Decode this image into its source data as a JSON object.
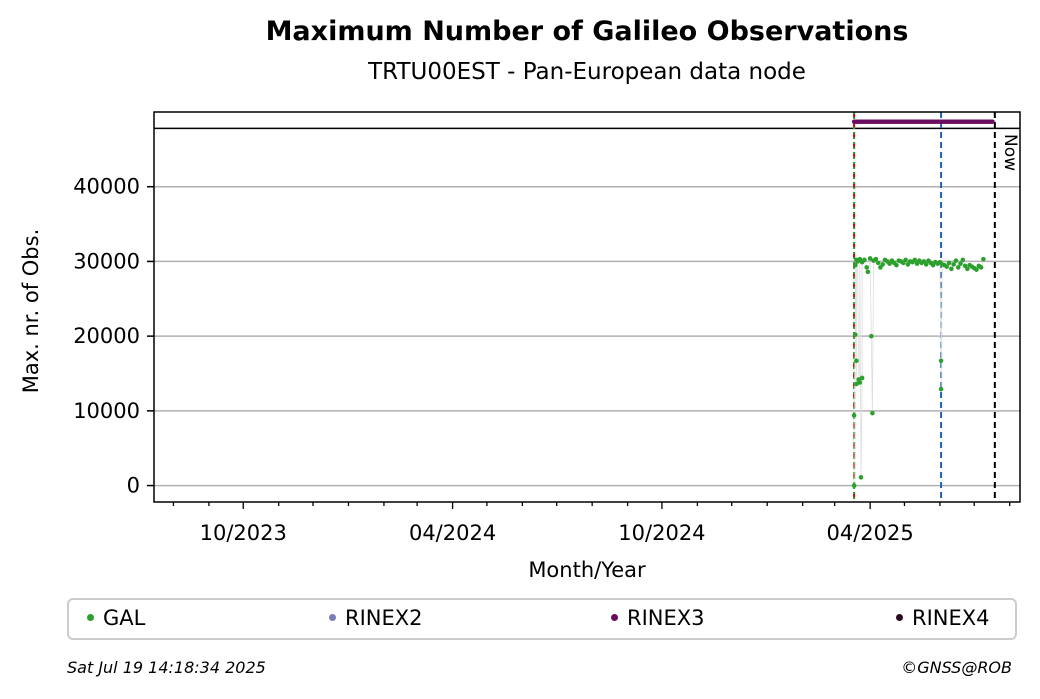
{
  "chart_data": {
    "type": "scatter",
    "title": "Maximum Number of Galileo Observations",
    "subtitle": "TRTU00EST - Pan-European data node",
    "xlabel": "Month/Year",
    "ylabel": "Max. nr. of Obs.",
    "x_tick_labels": [
      "10/2023",
      "04/2024",
      "10/2024",
      "04/2025"
    ],
    "y_ticks": [
      0,
      10000,
      20000,
      30000,
      40000
    ],
    "ylim": [
      -2200,
      50000
    ],
    "xlim": [
      "2023-07-15",
      "2025-08-10"
    ],
    "grid": "horizontal",
    "now_label": "Now",
    "vlines": [
      {
        "date": "2025-03-18",
        "color": "#cc0000",
        "style": "dashed"
      },
      {
        "date": "2025-03-18",
        "color": "#2ca02c",
        "style": "dotted"
      },
      {
        "date": "2025-06-02",
        "color": "#1f63b4",
        "style": "dashed"
      },
      {
        "date": "2025-07-19",
        "color": "#000000",
        "style": "dashed"
      }
    ],
    "hline": {
      "y": 47800,
      "color": "#000000"
    },
    "series": [
      {
        "name": "GAL",
        "color": "#2ca02c",
        "points": [
          [
            "2025-03-18",
            0
          ],
          [
            "2025-03-18",
            9400
          ],
          [
            "2025-03-19",
            20200
          ],
          [
            "2025-03-20",
            16700
          ],
          [
            "2025-03-20",
            13600
          ],
          [
            "2025-03-22",
            14200
          ],
          [
            "2025-03-23",
            13800
          ],
          [
            "2025-03-24",
            1100
          ],
          [
            "2025-03-25",
            14400
          ],
          [
            "2025-03-19",
            29500
          ],
          [
            "2025-03-20",
            30200
          ],
          [
            "2025-03-21",
            30000
          ],
          [
            "2025-03-23",
            30300
          ],
          [
            "2025-03-25",
            29900
          ],
          [
            "2025-03-27",
            30200
          ],
          [
            "2025-03-29",
            29200
          ],
          [
            "2025-03-30",
            28600
          ],
          [
            "2025-04-01",
            30400
          ],
          [
            "2025-04-02",
            20000
          ],
          [
            "2025-04-03",
            9700
          ],
          [
            "2025-04-04",
            30100
          ],
          [
            "2025-04-06",
            30300
          ],
          [
            "2025-04-08",
            29800
          ],
          [
            "2025-04-10",
            29200
          ],
          [
            "2025-04-12",
            29600
          ],
          [
            "2025-04-14",
            30200
          ],
          [
            "2025-04-16",
            30000
          ],
          [
            "2025-04-18",
            29700
          ],
          [
            "2025-04-20",
            30100
          ],
          [
            "2025-04-22",
            29800
          ],
          [
            "2025-04-24",
            29500
          ],
          [
            "2025-04-26",
            30100
          ],
          [
            "2025-04-28",
            30000
          ],
          [
            "2025-04-30",
            29800
          ],
          [
            "2025-05-02",
            30200
          ],
          [
            "2025-05-04",
            29600
          ],
          [
            "2025-05-06",
            30000
          ],
          [
            "2025-05-08",
            29900
          ],
          [
            "2025-05-10",
            30200
          ],
          [
            "2025-05-12",
            29700
          ],
          [
            "2025-05-14",
            30100
          ],
          [
            "2025-05-16",
            29800
          ],
          [
            "2025-05-18",
            30000
          ],
          [
            "2025-05-20",
            29600
          ],
          [
            "2025-05-22",
            30100
          ],
          [
            "2025-05-24",
            29800
          ],
          [
            "2025-05-26",
            29500
          ],
          [
            "2025-05-28",
            29900
          ],
          [
            "2025-05-30",
            29700
          ],
          [
            "2025-06-01",
            29900
          ],
          [
            "2025-06-02",
            16700
          ],
          [
            "2025-06-02",
            12900
          ],
          [
            "2025-06-03",
            29600
          ],
          [
            "2025-06-05",
            29500
          ],
          [
            "2025-06-07",
            29300
          ],
          [
            "2025-06-09",
            29800
          ],
          [
            "2025-06-11",
            29000
          ],
          [
            "2025-06-13",
            29600
          ],
          [
            "2025-06-15",
            30100
          ],
          [
            "2025-06-17",
            29200
          ],
          [
            "2025-06-19",
            29700
          ],
          [
            "2025-06-21",
            30200
          ],
          [
            "2025-06-23",
            29400
          ],
          [
            "2025-06-25",
            29000
          ],
          [
            "2025-06-27",
            29500
          ],
          [
            "2025-06-29",
            29300
          ],
          [
            "2025-07-01",
            29100
          ],
          [
            "2025-07-03",
            28900
          ],
          [
            "2025-07-05",
            29400
          ],
          [
            "2025-07-07",
            29200
          ],
          [
            "2025-07-09",
            30300
          ]
        ]
      },
      {
        "name": "RINEX2",
        "color": "#7b7bb8",
        "points": []
      },
      {
        "name": "RINEX3",
        "color": "#6a0d60",
        "y_constant": 48700,
        "x_range": [
          "2025-03-18",
          "2025-07-17"
        ]
      },
      {
        "name": "RINEX4",
        "color": "#2a0a1e",
        "points": []
      }
    ]
  },
  "legend": {
    "items": [
      {
        "label": "GAL",
        "color": "#2ca02c"
      },
      {
        "label": "RINEX2",
        "color": "#7b7bb8"
      },
      {
        "label": "RINEX3",
        "color": "#6a0d60"
      },
      {
        "label": "RINEX4",
        "color": "#2a0a1e"
      }
    ]
  },
  "footer": {
    "timestamp": "Sat Jul 19 14:18:34 2025",
    "credit": "©GNSS@ROB"
  }
}
